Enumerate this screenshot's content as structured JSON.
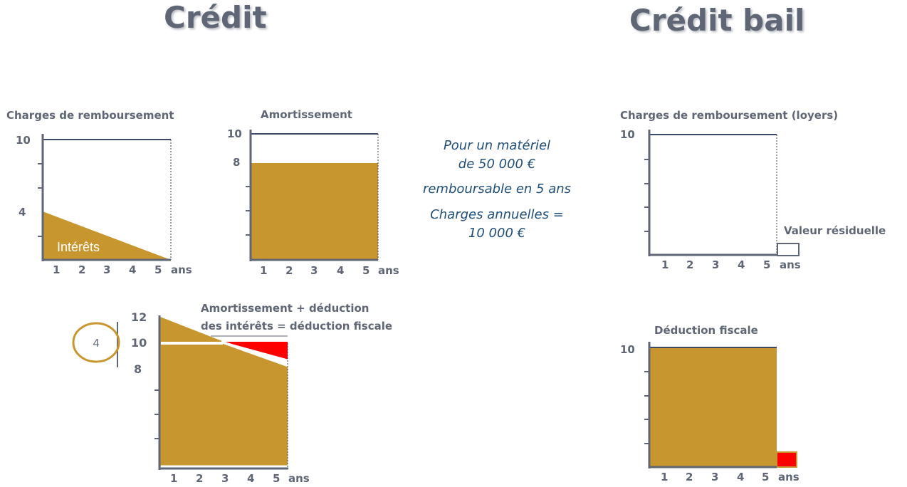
{
  "titles": {
    "credit": "Crédit",
    "credit_bail": "Crédit bail"
  },
  "colors": {
    "fill": "#c8962e",
    "red": "#ff0000",
    "axis": "#5f6675",
    "text": "#5f6675",
    "note": "#1f4e79"
  },
  "note": {
    "lines": [
      "Pour un matériel",
      "de 50 000 €",
      "remboursable en 5 ans",
      "Charges annuelles =",
      "10 000 €"
    ]
  },
  "circle_value": "4",
  "chart_data": [
    {
      "id": "credit-remboursement",
      "type": "area",
      "title": "Charges de remboursement",
      "x_ticks": [
        "1",
        "2",
        "3",
        "4",
        "5"
      ],
      "x_unit": "ans",
      "y_labels": [
        "10",
        "4"
      ],
      "ylim": [
        0,
        10
      ],
      "series": [
        {
          "name": "Intérêts",
          "x": [
            0,
            5
          ],
          "values": [
            4,
            0
          ]
        }
      ]
    },
    {
      "id": "credit-amortissement",
      "type": "area",
      "title": "Amortissement",
      "x_ticks": [
        "1",
        "2",
        "3",
        "4",
        "5"
      ],
      "x_unit": "ans",
      "y_labels": [
        "10",
        "8"
      ],
      "ylim": [
        0,
        10
      ],
      "series": [
        {
          "x": [
            0,
            5
          ],
          "values": [
            8,
            8
          ]
        }
      ]
    },
    {
      "id": "credit-deduction",
      "type": "area",
      "title_lines": [
        "Amortissement + déduction",
        "des intérêts = déduction fiscale"
      ],
      "x_ticks": [
        "1",
        "2",
        "3",
        "4",
        "5"
      ],
      "x_unit": "ans",
      "y_labels": [
        "12",
        "10",
        "8"
      ],
      "ylim": [
        0,
        12
      ],
      "series": [
        {
          "x": [
            0,
            5
          ],
          "values": [
            12,
            8
          ]
        }
      ],
      "reference_line": 10
    },
    {
      "id": "bail-loyers",
      "type": "area",
      "title": "Charges de remboursement (loyers)",
      "x_ticks": [
        "1",
        "2",
        "3",
        "4",
        "5"
      ],
      "x_unit": "ans",
      "y_labels": [
        "10"
      ],
      "ylim": [
        0,
        10
      ],
      "series": [
        {
          "x": [
            0,
            5
          ],
          "values": [
            10,
            10
          ]
        }
      ],
      "annotation": "Valeur résiduelle"
    },
    {
      "id": "bail-deduction",
      "type": "area",
      "title": "Déduction fiscale",
      "x_ticks": [
        "1",
        "2",
        "3",
        "4",
        "5"
      ],
      "x_unit": "ans",
      "y_labels": [
        "10"
      ],
      "ylim": [
        0,
        10
      ],
      "series": [
        {
          "x": [
            0,
            5
          ],
          "values": [
            10,
            10
          ]
        }
      ]
    }
  ]
}
